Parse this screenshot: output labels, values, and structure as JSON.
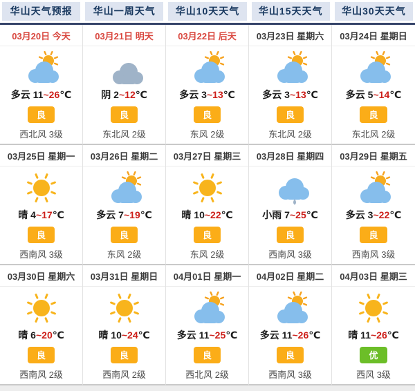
{
  "tabs": [
    {
      "label": "华山天气预报"
    },
    {
      "label": "华山一周天气"
    },
    {
      "label": "华山10天天气"
    },
    {
      "label": "华山15天天气"
    },
    {
      "label": "华山30天天气"
    }
  ],
  "colors": {
    "tab_bg": "#dee4f0",
    "tab_text": "#17375e",
    "tab_underline": "#36446a",
    "date_red": "#d9473f",
    "temp_high_red": "#cd1f1a",
    "aqi_good": "#fbad18",
    "aqi_excellent": "#6cbe28",
    "cloud_blue": "#86beec",
    "cloud_gray": "#9fb3c8",
    "sun_yellow": "#f8b41c"
  },
  "aqi_colors": {
    "良": "#fbad18",
    "优": "#6cbe28"
  },
  "cards": [
    {
      "date": "03月20日",
      "day": "今天",
      "date_red": true,
      "icon": "partly-cloudy",
      "cond": "多云",
      "low": "11",
      "tilde": "~",
      "high": "26",
      "unit": "℃",
      "aqi": "良",
      "wind": "西北风 3级"
    },
    {
      "date": "03月21日",
      "day": "明天",
      "date_red": true,
      "icon": "overcast",
      "cond": "阴",
      "low": "2",
      "tilde": "~",
      "high": "12",
      "unit": "℃",
      "aqi": "良",
      "wind": "东北风 2级"
    },
    {
      "date": "03月22日",
      "day": "后天",
      "date_red": true,
      "icon": "partly-cloudy",
      "cond": "多云",
      "low": "3",
      "tilde": "~",
      "high": "13",
      "unit": "℃",
      "aqi": "良",
      "wind": "东风 2级"
    },
    {
      "date": "03月23日",
      "day": "星期六",
      "date_red": false,
      "icon": "partly-cloudy",
      "cond": "多云",
      "low": "3",
      "tilde": "~",
      "high": "13",
      "unit": "℃",
      "aqi": "良",
      "wind": "东北风 2级"
    },
    {
      "date": "03月24日",
      "day": "星期日",
      "date_red": false,
      "icon": "partly-cloudy",
      "cond": "多云",
      "low": "5",
      "tilde": "~",
      "high": "14",
      "unit": "℃",
      "aqi": "良",
      "wind": "东北风 2级"
    },
    {
      "date": "03月25日",
      "day": "星期一",
      "date_red": false,
      "icon": "sunny",
      "cond": "晴",
      "low": "4",
      "tilde": "~",
      "high": "17",
      "unit": "℃",
      "aqi": "良",
      "wind": "西南风 3级"
    },
    {
      "date": "03月26日",
      "day": "星期二",
      "date_red": false,
      "icon": "partly-cloudy",
      "cond": "多云",
      "low": "7",
      "tilde": "~",
      "high": "19",
      "unit": "℃",
      "aqi": "良",
      "wind": "东风 2级"
    },
    {
      "date": "03月27日",
      "day": "星期三",
      "date_red": false,
      "icon": "sunny",
      "cond": "晴",
      "low": "10",
      "tilde": "~",
      "high": "22",
      "unit": "℃",
      "aqi": "良",
      "wind": "东风 2级"
    },
    {
      "date": "03月28日",
      "day": "星期四",
      "date_red": false,
      "icon": "rain",
      "cond": "小雨",
      "low": "7",
      "tilde": "~",
      "high": "25",
      "unit": "℃",
      "aqi": "良",
      "wind": "西南风 3级"
    },
    {
      "date": "03月29日",
      "day": "星期五",
      "date_red": false,
      "icon": "partly-cloudy",
      "cond": "多云",
      "low": "3",
      "tilde": "~",
      "high": "22",
      "unit": "℃",
      "aqi": "良",
      "wind": "西南风 3级"
    },
    {
      "date": "03月30日",
      "day": "星期六",
      "date_red": false,
      "icon": "sunny",
      "cond": "晴",
      "low": "6",
      "tilde": "~",
      "high": "20",
      "unit": "℃",
      "aqi": "良",
      "wind": "西南风 2级"
    },
    {
      "date": "03月31日",
      "day": "星期日",
      "date_red": false,
      "icon": "sunny",
      "cond": "晴",
      "low": "10",
      "tilde": "~",
      "high": "24",
      "unit": "℃",
      "aqi": "良",
      "wind": "西南风 2级"
    },
    {
      "date": "04月01日",
      "day": "星期一",
      "date_red": false,
      "icon": "partly-cloudy",
      "cond": "多云",
      "low": "11",
      "tilde": "~",
      "high": "25",
      "unit": "℃",
      "aqi": "良",
      "wind": "西北风 2级"
    },
    {
      "date": "04月02日",
      "day": "星期二",
      "date_red": false,
      "icon": "partly-cloudy",
      "cond": "多云",
      "low": "11",
      "tilde": "~",
      "high": "26",
      "unit": "℃",
      "aqi": "良",
      "wind": "西南风 3级"
    },
    {
      "date": "04月03日",
      "day": "星期三",
      "date_red": false,
      "icon": "sunny",
      "cond": "晴",
      "low": "11",
      "tilde": "~",
      "high": "26",
      "unit": "℃",
      "aqi": "优",
      "wind": "西风 3级"
    }
  ]
}
